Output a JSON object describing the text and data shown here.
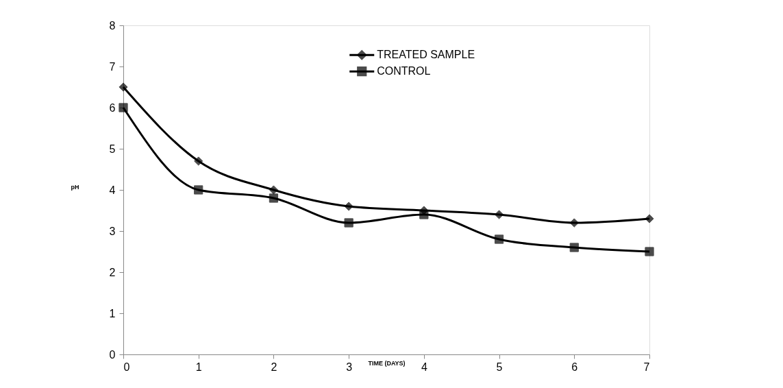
{
  "chart_data": {
    "type": "line",
    "xlabel": "TIME (DAYS)",
    "ylabel": "pH",
    "x": [
      0,
      1,
      2,
      3,
      4,
      5,
      6,
      7
    ],
    "series": [
      {
        "name": "TREATED SAMPLE",
        "color": "#000000",
        "marker": "diamond",
        "values": [
          6.5,
          4.7,
          4.0,
          3.6,
          3.5,
          3.4,
          3.2,
          3.3
        ]
      },
      {
        "name": "CONTROL",
        "color": "#000000",
        "marker": "square",
        "values": [
          6.0,
          4.0,
          3.8,
          3.2,
          3.4,
          2.8,
          2.6,
          2.5
        ]
      }
    ],
    "xlim": [
      0,
      7
    ],
    "xticks": [
      0,
      1,
      2,
      3,
      4,
      5,
      6,
      7
    ],
    "ylim": [
      0,
      8
    ],
    "yticks": [
      0,
      1,
      2,
      3,
      4,
      5,
      6,
      7,
      8
    ],
    "grid": false,
    "legend": "top",
    "line_style": "solid"
  }
}
